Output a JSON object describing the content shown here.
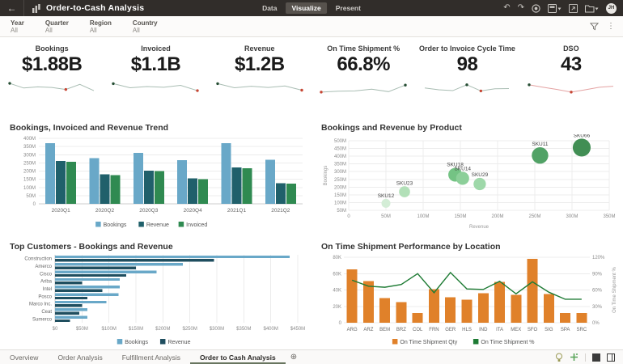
{
  "header": {
    "title": "Order-to-Cash Analysis",
    "nav_tabs": [
      {
        "label": "Data"
      },
      {
        "label": "Visualize"
      },
      {
        "label": "Present"
      }
    ],
    "avatar_initials": "JH"
  },
  "filters": {
    "items": [
      {
        "label": "Year",
        "value": "All"
      },
      {
        "label": "Quarter",
        "value": "All"
      },
      {
        "label": "Region",
        "value": "All"
      },
      {
        "label": "Country",
        "value": "All"
      }
    ]
  },
  "kpis": [
    {
      "label": "Bookings",
      "value": "$1.88B",
      "spark": {
        "values": [
          72,
          40,
          48,
          44,
          30,
          65,
          22
        ],
        "line_color": "#A9BDB3",
        "start_dot": 0,
        "red_dot": 4
      }
    },
    {
      "label": "Invoiced",
      "value": "$1.1B",
      "spark": {
        "values": [
          70,
          42,
          50,
          45,
          58,
          22
        ],
        "line_color": "#A9BDB3",
        "start_dot": 0,
        "red_dot": 5
      }
    },
    {
      "label": "Revenue",
      "value": "$1.2B",
      "spark": {
        "values": [
          70,
          42,
          52,
          44,
          54,
          25
        ],
        "line_color": "#A9BDB3",
        "start_dot": 0,
        "red_dot": 5
      }
    },
    {
      "label": "On Time Shipment %",
      "value": "66.8%",
      "spark": {
        "values": [
          12,
          18,
          20,
          32,
          15,
          60
        ],
        "line_color": "#A9BDB3",
        "start_dot": 5,
        "red_dot": 0
      }
    },
    {
      "label": "Order to Invoice Cycle Time",
      "value": "98",
      "spark": {
        "values": [
          40,
          28,
          22,
          62,
          20,
          35,
          36
        ],
        "line_color": "#A9BDB3",
        "start_dot": 3,
        "red_dot": 4
      }
    },
    {
      "label": "DSO",
      "value": "43",
      "spark": {
        "values": [
          62,
          45,
          30,
          12,
          28,
          45,
          52
        ],
        "line_color": "#E4A2A2",
        "start_dot": 0,
        "red_dot": 3
      }
    }
  ],
  "chart_data": [
    {
      "type": "bar",
      "title": "Bookings, Invoiced and Revenue Trend",
      "categories": [
        "2020Q1",
        "2020Q2",
        "2020Q3",
        "2020Q4",
        "2021Q1",
        "2021Q2"
      ],
      "series": [
        {
          "name": "Bookings",
          "color": "#69A8C8",
          "values": [
            370,
            280,
            310,
            267,
            370,
            270
          ]
        },
        {
          "name": "Revenue",
          "color": "#20606B",
          "values": [
            262,
            180,
            203,
            155,
            222,
            125
          ]
        },
        {
          "name": "Invoiced",
          "color": "#2F8A51",
          "values": [
            257,
            176,
            199,
            150,
            218,
            123
          ]
        }
      ],
      "ylim": [
        0,
        400
      ],
      "yticks": [
        0,
        50,
        100,
        150,
        200,
        250,
        300,
        350,
        400
      ],
      "ytick_labels": [
        "0",
        "50M",
        "100M",
        "150M",
        "200M",
        "250M",
        "300M",
        "350M",
        "400M"
      ],
      "legend_position": "bottom",
      "grid": true
    },
    {
      "type": "bubble",
      "title": "Bookings and Revenue by Product",
      "xlabel": "Revenue",
      "ylabel": "Bookings",
      "xlim": [
        0,
        350
      ],
      "ylim": [
        50,
        500
      ],
      "xticks": [
        0,
        50,
        100,
        150,
        200,
        250,
        300,
        350
      ],
      "xtick_labels": [
        "0",
        "50M",
        "100M",
        "150M",
        "200M",
        "250M",
        "300M",
        "350M"
      ],
      "yticks": [
        50,
        100,
        150,
        200,
        250,
        300,
        350,
        400,
        450,
        500
      ],
      "ytick_labels": [
        "50M",
        "100M",
        "150M",
        "200M",
        "250M",
        "300M",
        "350M",
        "400M",
        "450M",
        "500M"
      ],
      "points": [
        {
          "label": "SKU12",
          "x": 50,
          "y": 95,
          "r": 6.5,
          "color": "#D3EDD6"
        },
        {
          "label": "SKU23",
          "x": 75,
          "y": 170,
          "r": 8,
          "color": "#B2E0B8"
        },
        {
          "label": "SKU18",
          "x": 143,
          "y": 280,
          "r": 10,
          "color": "#74C384"
        },
        {
          "label": "SKU14",
          "x": 153,
          "y": 257,
          "r": 9.5,
          "color": "#8CCF99"
        },
        {
          "label": "SKU29",
          "x": 176,
          "y": 220,
          "r": 9,
          "color": "#9ED8A9"
        },
        {
          "label": "SKU11",
          "x": 257,
          "y": 405,
          "r": 12,
          "color": "#51A266"
        },
        {
          "label": "SKU66",
          "x": 313,
          "y": 456,
          "r": 13,
          "color": "#418E54"
        }
      ],
      "grid": true
    },
    {
      "type": "hbar",
      "title": "Top Customers - Bookings and Revenue",
      "categories": [
        "Construction",
        "Amerco",
        "Cisco",
        "Ariba",
        "Intel",
        "Posco",
        "Marco Inc.",
        "Ceat",
        "Sumerco"
      ],
      "series": [
        {
          "name": "Bookings",
          "color": "#69A8C8",
          "values": [
            435,
            237,
            188,
            120,
            120,
            118,
            95,
            60,
            60
          ]
        },
        {
          "name": "Revenue",
          "color": "#1F4E5F",
          "values": [
            295,
            150,
            132,
            50,
            88,
            60,
            50,
            45,
            28
          ]
        }
      ],
      "xlim": [
        0,
        450
      ],
      "xticks": [
        0,
        50,
        100,
        150,
        200,
        250,
        300,
        350,
        400,
        450
      ],
      "xtick_labels": [
        "$0",
        "$50M",
        "$100M",
        "$150M",
        "$200M",
        "$250M",
        "$300M",
        "$350M",
        "$400M",
        "$450M"
      ],
      "legend_position": "bottom",
      "grid": true
    },
    {
      "type": "combo",
      "title": "On Time Shipment Performance by Location",
      "categories": [
        "ARG",
        "ARZ",
        "BEM",
        "BRZ",
        "COL",
        "FRN",
        "GER",
        "HLS",
        "IND",
        "ITA",
        "MEX",
        "SFO",
        "SIG",
        "SPA",
        "SRC"
      ],
      "bar_series": {
        "name": "On Time Shipment Qty",
        "color": "#E0812A",
        "values": [
          65,
          51,
          30,
          25,
          12,
          41,
          31,
          28,
          36,
          50,
          34,
          78,
          35,
          12,
          12
        ]
      },
      "line_series": {
        "name": "On Time Shipment %",
        "color": "#1E7B34",
        "values": [
          78,
          67,
          65,
          70,
          90,
          55,
          92,
          62,
          61,
          76,
          53,
          75,
          56,
          43,
          43
        ]
      },
      "ylim_left": [
        0,
        80
      ],
      "yticks_left": [
        0,
        20,
        40,
        60,
        80
      ],
      "ytick_labels_left": [
        "0",
        "20K",
        "40K",
        "60K",
        "80K"
      ],
      "ylim_right": [
        0,
        120
      ],
      "yticks_right": [
        0,
        30,
        60,
        90,
        120
      ],
      "ytick_labels_right": [
        "0%",
        "30%",
        "60%",
        "90%",
        "120%"
      ],
      "right_axis_label": "On Time Shipment %",
      "legend_position": "bottom",
      "grid": true
    }
  ],
  "footer": {
    "tabs": [
      {
        "label": "Overview"
      },
      {
        "label": "Order Analysis"
      },
      {
        "label": "Fulfillment Analysis"
      },
      {
        "label": "Order to Cash Analysis"
      }
    ]
  }
}
